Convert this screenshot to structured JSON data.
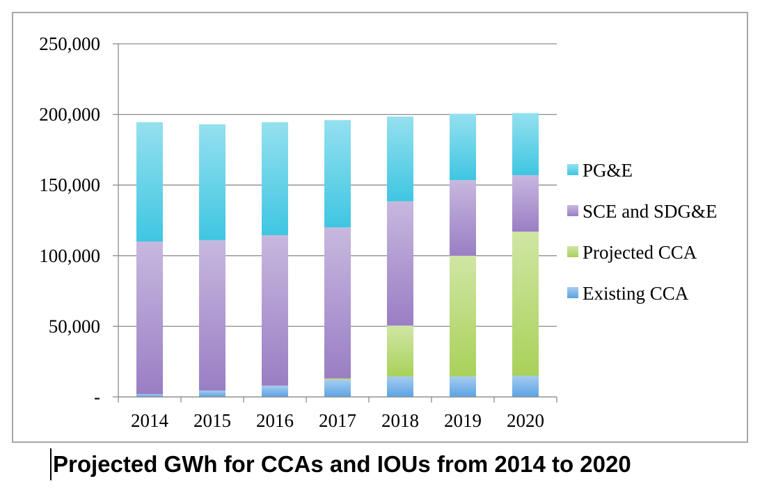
{
  "chart_data": {
    "type": "bar",
    "stacked": true,
    "categories": [
      "2014",
      "2015",
      "2016",
      "2017",
      "2018",
      "2019",
      "2020"
    ],
    "series": [
      {
        "name": "Existing CCA",
        "color": "#5ba3e3",
        "values": [
          2000,
          4500,
          8000,
          12000,
          14500,
          14500,
          15000
        ]
      },
      {
        "name": "Projected CCA",
        "color": "#a9d15a",
        "values": [
          0,
          0,
          0,
          1000,
          36000,
          85500,
          102000
        ]
      },
      {
        "name": "SCE and SDG&E",
        "color": "#9a7ec4",
        "values": [
          108000,
          106500,
          106500,
          107000,
          88000,
          53500,
          40000
        ]
      },
      {
        "name": "PG&E",
        "color": "#3fc6e2",
        "values": [
          84500,
          82000,
          80000,
          76000,
          60000,
          47000,
          44000
        ]
      }
    ],
    "y_tick_labels": [
      "-",
      "50,000",
      "100,000",
      "150,000",
      "200,000",
      "250,000"
    ],
    "ylim": [
      0,
      250000
    ],
    "grid": true,
    "legend_position": "right",
    "title": "Projected GWh for CCAs and IOUs from 2014 to 2020"
  }
}
